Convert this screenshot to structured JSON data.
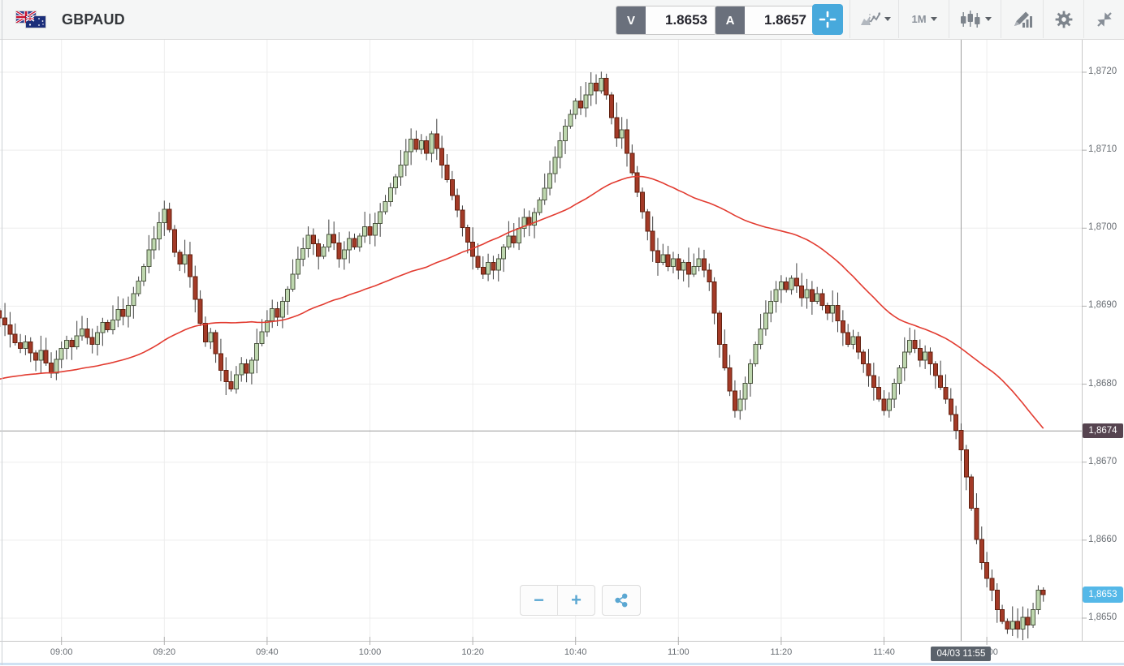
{
  "header": {
    "symbol": "GBPAUD",
    "sell_button": {
      "label": "V",
      "value": "1.8653"
    },
    "buy_button": {
      "label": "A",
      "value": "1.8657"
    },
    "timeframe": "1M"
  },
  "badges": {
    "line_price_label": "1,8674",
    "last_price_label": "1,8653",
    "crosshair_time_label": "04/03 11:55"
  },
  "zoom_controls": {
    "zoom_out": "−",
    "zoom_in": "+"
  },
  "colors": {
    "accent_blue": "#47a9dc",
    "candle_up_fill": "#bed7ae",
    "candle_up_stroke": "#4b5540",
    "candle_down_fill": "#a33a27",
    "candle_down_stroke": "#61200f",
    "wick": "#404040",
    "ma_line": "#e23b30",
    "grid": "#ededed",
    "crosshair_line": "#9e9e9e",
    "bid_badge": "#564450",
    "last_badge": "#55b8e8",
    "time_badge": "#5b626b",
    "axis_text": "#686d73"
  },
  "chart_data": {
    "type": "candlestick",
    "symbol": "GBPAUD",
    "timeframe": "1M",
    "start_time": "08:48",
    "interval_minutes": 1,
    "price_base": 1.86,
    "unit": "pips (0.0001) above price_base",
    "first_open_pips": 89.4,
    "closes_pips": [
      88.5,
      87.6,
      86.4,
      85.3,
      84.6,
      85.4,
      84.0,
      83.1,
      84.3,
      82.7,
      81.4,
      83.2,
      84.6,
      85.6,
      84.8,
      86.2,
      87.1,
      86.0,
      85.1,
      86.6,
      87.9,
      87.0,
      88.2,
      89.6,
      88.7,
      90.1,
      91.6,
      93.2,
      95.1,
      97.2,
      98.6,
      100.7,
      102.4,
      99.8,
      96.9,
      95.4,
      96.6,
      93.8,
      90.9,
      87.8,
      85.4,
      86.6,
      83.9,
      81.8,
      80.3,
      79.4,
      81.2,
      82.6,
      81.4,
      83.1,
      85.2,
      86.7,
      88.1,
      89.7,
      88.6,
      90.6,
      92.2,
      94.1,
      96.0,
      97.4,
      99.1,
      98.0,
      96.4,
      97.6,
      99.2,
      98.1,
      96.1,
      97.2,
      98.7,
      97.6,
      99.0,
      100.2,
      99.1,
      100.6,
      102.1,
      103.4,
      105.2,
      106.6,
      108.1,
      109.8,
      111.4,
      110.1,
      111.2,
      109.6,
      112.1,
      110.2,
      108.1,
      106.2,
      104.2,
      102.3,
      100.1,
      98.2,
      96.4,
      95.0,
      94.1,
      95.6,
      94.6,
      96.1,
      97.6,
      99.0,
      98.1,
      100.0,
      101.4,
      100.4,
      102.0,
      103.6,
      105.1,
      107.0,
      109.1,
      111.2,
      113.1,
      114.6,
      116.3,
      115.4,
      117.1,
      118.6,
      117.6,
      119.2,
      117.1,
      114.2,
      111.6,
      112.6,
      109.6,
      107.1,
      104.6,
      102.1,
      99.6,
      97.1,
      95.6,
      96.6,
      95.1,
      96.1,
      94.6,
      95.6,
      94.1,
      95.1,
      96.1,
      94.6,
      93.1,
      89.1,
      85.1,
      82.1,
      79.1,
      76.6,
      78.1,
      80.1,
      82.6,
      85.1,
      87.1,
      89.1,
      90.6,
      92.1,
      93.1,
      92.1,
      93.6,
      92.6,
      91.1,
      92.1,
      90.6,
      91.6,
      90.1,
      89.1,
      90.1,
      88.1,
      86.6,
      85.1,
      86.1,
      84.1,
      82.6,
      81.1,
      79.6,
      78.1,
      76.6,
      78.1,
      80.1,
      82.1,
      84.1,
      85.6,
      84.6,
      83.1,
      84.1,
      82.6,
      81.1,
      79.6,
      78.1,
      76.1,
      74.1,
      71.6,
      68.1,
      64.1,
      60.1,
      57.1,
      55.1,
      53.6,
      51.1,
      49.6,
      48.6,
      49.6,
      48.6,
      50.1,
      49.1,
      51.1,
      53.6,
      53.0
    ],
    "ma": {
      "type": "SMA",
      "period": 50,
      "seed_pips": 80.5
    },
    "horizontal_line_price": 1.8674,
    "last_price": 1.8653,
    "bid": 1.8653,
    "ask": 1.8657,
    "crosshair_time": "11:55",
    "visible_price_range": [
      1.8647,
      1.8724
    ],
    "y_ticks": [
      "1,8720",
      "1,8710",
      "1,8700",
      "1,8690",
      "1,8680",
      "1,8670",
      "1,8660",
      "1,8650"
    ],
    "y_tick_pips": [
      120,
      110,
      100,
      90,
      80,
      70,
      60,
      50
    ],
    "x_ticks": [
      "09:00",
      "09:20",
      "09:40",
      "10:00",
      "10:20",
      "10:40",
      "11:00",
      "11:20",
      "11:40",
      "12:00"
    ],
    "grid": true,
    "legend": false
  }
}
